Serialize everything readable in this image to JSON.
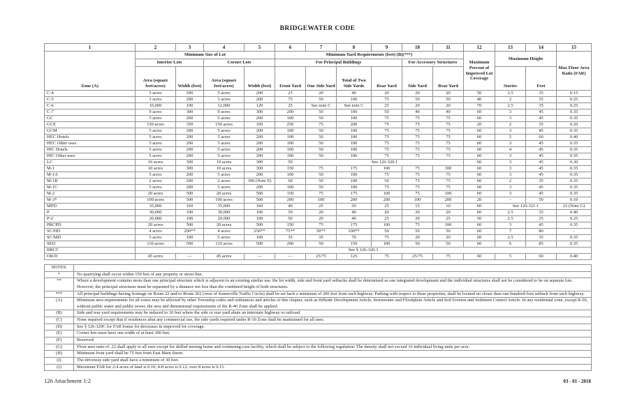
{
  "page": {
    "title": "BRIDGEWATER CODE",
    "footer_left": "126 Attachment 1:2",
    "footer_right": "03 - 01 - 2018"
  },
  "table": {
    "headers": {
      "column_numbers": [
        "1",
        "2",
        "3",
        "4",
        "5",
        "6",
        "7",
        "8",
        "9",
        "10",
        "11",
        "12",
        "13",
        "14",
        "15"
      ],
      "zone": "Zone (A)",
      "min_size_of_lot": "Minimum Size of Lot",
      "min_yard_req": "Minimum Yard Requirements (feet) (B)(***)",
      "max_pct_coverage": "Maximum Percent of Improved Lot Coverage",
      "max_height": "Maximum Height",
      "max_far": "Max Floor Area Ratio (FAR)",
      "interior_lots": "Interior Lots",
      "corner_lots": "Corner Lots",
      "for_principal": "For Principal Buildings",
      "for_accessory": "For Accessory Structures",
      "area_interior": "Area (square feet/acres)",
      "width_interior": "Width (feet)",
      "area_corner": "Area (square feet/acres)",
      "width_corner": "Width (feet)",
      "front_yard": "Front Yard",
      "one_side_yard": "One Side Yard",
      "total_two_side_yards": "Total of Two Side Yards",
      "rear_yard_principal": "Rear Yard",
      "side_yard_accessory": "Side Yard",
      "rear_yard_accessory": "Rear Yard",
      "stories": "Stories",
      "feet": "Feet"
    },
    "rows": [
      {
        "zone": "C-4",
        "cells": [
          "5 acres",
          "200",
          "5 acres",
          "200",
          "25",
          "20",
          "40",
          "20",
          "20",
          "20",
          "50",
          "2.5",
          "35",
          "0.15"
        ]
      },
      {
        "zone": "C-5",
        "cells": [
          "3 acres",
          "200",
          "3 acres",
          "200",
          "75",
          "50",
          "100",
          "75",
          "50",
          "50",
          "40",
          "2",
          "35",
          "0.25"
        ]
      },
      {
        "zone": "C-6",
        "cells": [
          "10,000",
          "100",
          "12,000",
          "120",
          "25",
          "See note C",
          "See note C",
          "25",
          "20",
          "20",
          "70",
          "2.5",
          "35",
          "0.25"
        ]
      },
      {
        "zone": "C-7",
        "cells": [
          "9 acres",
          "300",
          "9 acres",
          "300",
          "200",
          "50",
          "100",
          "50",
          "40",
          "40",
          "60",
          "3",
          "45",
          "0.35"
        ]
      },
      {
        "zone": "GC",
        "cells": [
          "5 acres",
          "200",
          "5 acres",
          "200",
          "100",
          "50",
          "100",
          "75",
          "75",
          "75",
          "60",
          "3",
          "45",
          "0.35"
        ]
      },
      {
        "zone": "GCE",
        "cells": [
          "150 acres",
          "350",
          "150 acres",
          "350",
          "250",
          "75",
          "200",
          "75",
          "75",
          "75",
          "20",
          "2",
          "35",
          "0.20"
        ]
      },
      {
        "zone": "GCM",
        "cells": [
          "5 acres",
          "200",
          "5 acres",
          "200",
          "100",
          "50",
          "100",
          "75",
          "75",
          "75",
          "60",
          "3",
          "45",
          "0.35"
        ]
      },
      {
        "zone": "HEC Hotels",
        "cells": [
          "5 acres",
          "200",
          "5 acres",
          "200",
          "100",
          "50",
          "100",
          "75",
          "75",
          "75",
          "60",
          "5",
          "60",
          "0.40"
        ]
      },
      {
        "zone": "HEC Other uses",
        "cells": [
          "5 acres",
          "200",
          "5 acres",
          "200",
          "100",
          "50",
          "100",
          "75",
          "75",
          "75",
          "60",
          "3",
          "45",
          "0.35"
        ]
      },
      {
        "zone": "HIC Hotels",
        "cells": [
          "5 acres",
          "200",
          "5 acres",
          "200",
          "100",
          "50",
          "100",
          "75",
          "75",
          "75",
          "60",
          "4",
          "45",
          "0.35"
        ]
      },
      {
        "zone": "HIC Other uses",
        "cells": [
          "5 acres",
          "200",
          "5 acres",
          "200",
          "100",
          "50",
          "100",
          "75",
          "75",
          "75",
          "60",
          "3",
          "45",
          "0.35"
        ]
      },
      {
        "zone": "LC",
        "cells": [
          "10 acres",
          "300",
          "10 acres",
          "300",
          "50",
          {
            "t": "See 126-320.1",
            "s": 5
          },
          "60",
          "3",
          "45",
          "0.30"
        ]
      },
      {
        "zone": "M-1",
        "cells": [
          "10 acres",
          "300",
          "10 acres",
          "300",
          "150",
          "75",
          "175",
          "100",
          "75",
          "100",
          "60",
          "3",
          "45",
          "0.35"
        ]
      },
      {
        "zone": "M-1A",
        "cells": [
          "5 acres",
          "200",
          "5 acres",
          "200",
          "100",
          "50",
          "100",
          "75",
          "75",
          "75",
          "60",
          "3",
          "45",
          "0.35"
        ]
      },
      {
        "zone": "M-1B",
        "cells": [
          "2 acres",
          "200",
          "2 acres",
          "300 (Note E)",
          "60",
          "50",
          "100",
          "50",
          "75",
          "75",
          "60",
          "2",
          "35",
          "0.35"
        ]
      },
      {
        "zone": "M-1C",
        "cells": [
          "5 acres",
          "200",
          "5 acres",
          "200",
          "100",
          "50",
          "100",
          "75",
          "75",
          "75",
          "60",
          "3",
          "45",
          "0.35"
        ]
      },
      {
        "zone": "M-2",
        "cells": [
          "20 acres",
          "500",
          "20 acres",
          "500",
          "150",
          "75",
          "175",
          "100",
          "75",
          "100",
          "60",
          "3",
          "45",
          "0.35"
        ]
      },
      {
        "zone": "M-3*",
        "cells": [
          "100 acres",
          "500",
          "100 acres",
          "500",
          "200",
          "100",
          "200",
          "200",
          "100",
          "200",
          "20",
          "-",
          "50",
          "0.10"
        ]
      },
      {
        "zone": "MPD",
        "cells": [
          "35,000",
          "160",
          "35,000",
          "160",
          "40",
          "25",
          "50",
          "25",
          "15",
          "10",
          "60",
          {
            "t": "See 126-321.1",
            "s": 2
          },
          "22 (Note G)"
        ]
      },
      {
        "zone": "P",
        "cells": [
          "30,000",
          "100",
          "30,000",
          "100",
          "50",
          "20",
          "40",
          "20",
          "20",
          "20",
          "60",
          "2.5",
          "35",
          "0.40"
        ]
      },
      {
        "zone": "P-2",
        "cells": [
          "20,000",
          "100",
          "20,000",
          "100",
          "50",
          "20",
          "40",
          "25",
          "20",
          "25",
          "50",
          "2.5",
          "35",
          "0.25"
        ]
      },
      {
        "zone": "PRCPD",
        "cells": [
          "20 acres",
          "500",
          "20 acres",
          "500",
          "150",
          "75",
          "175",
          "100",
          "75",
          "100",
          "60",
          "3",
          "45",
          "0.35"
        ]
      },
      {
        "zone": "SC/HD",
        "cells": [
          "4 acres",
          "200**",
          "4 acres",
          "250**",
          "75**",
          "50**",
          "100**",
          "50",
          "50",
          "50",
          "60",
          "7",
          "80",
          "-"
        ]
      },
      {
        "zone": "SC/MD",
        "cells": [
          "5 acres",
          "100",
          "5 acres",
          "100",
          "35",
          "35",
          "70",
          "75",
          "20",
          "20",
          "60",
          "2.5",
          "35",
          "0.35"
        ]
      },
      {
        "zone": "SED",
        "cells": [
          "110 acres",
          "500",
          "110 acres",
          "500",
          "200",
          "50",
          "150",
          "100",
          "50",
          "50",
          "60",
          "6",
          "85",
          "0.35"
        ]
      },
      {
        "zone": "BRCC",
        "cells": [
          {
            "t": "See § 126-320.3",
            "s": 14
          }
        ]
      },
      {
        "zone": "OR/D",
        "cells": [
          "45 acres",
          "—",
          "45 acres",
          "—",
          "—",
          "25/75",
          "125",
          "75",
          "25/75",
          "75",
          "60",
          "5",
          "60",
          "0.40"
        ]
      }
    ]
  },
  "notes": {
    "header": "NOTES:",
    "items": [
      {
        "label": "*",
        "text": "No quarrying shall occur within 150 feet of any property or street line."
      },
      {
        "label": "**",
        "text": "Where a development contains more than one principal structure which is adjacent to an existing similar use, the lot width, side and front yard setbacks shall be determined as one integrated development and the individual structures shall not be considered to be on separate lots. However, the principal structures must be separated by a distance not less than the combined height of both structures."
      },
      {
        "label": "***",
        "text": "All principal buildings having frontage on Route 22 and/or Route 202 (west of Somerville Traffic Circle) shall be set back a minimum of 200 feet from such highway. Parking with respect to these properties, shall be located no closer than one-hundred-foot setback from such highway."
      },
      {
        "label": "(A)",
        "text": "Minimum area requirements for all zones may be affected by other Township codes and ordinances and articles of this chapter, such as Hillside Development Article, Stormwater and Floodplain Article and Soil Erosion and Sediment Control Article. In any residential zone, except R-50, without public water and public sewer, the area and dimensional requirements of the R-40 Zone shall be applied."
      },
      {
        "label": "(B)",
        "text": "Side and rear yard requirements may be reduced to 10 feet where the side or rear yard abuts an interstate highway or railroad."
      },
      {
        "label": "(C)",
        "text": "None required except that if residences abut any commercial use, the side yards required under R-10 Zone shall be maintained for all uses."
      },
      {
        "label": "(D)",
        "text": "See § 126-329C for FAR bonus for decreases in improved lot coverage."
      },
      {
        "label": "(E)",
        "text": "Corner lots must have one width of at least 300 feet."
      },
      {
        "label": "(F)",
        "text": "Reserved."
      },
      {
        "label": "(G)",
        "text": "Floor area ratio of .22 shall apply to all uses except for skilled nursing home and continuing-care facility, which shall be subject to the following regulation: The density shall not exceed 16 individual living units per acre."
      },
      {
        "label": "(H)",
        "text": "Minimum front yard shall be 75 feet from East Main Street."
      },
      {
        "label": "(I)",
        "text": "The driveway side yard shall have a minimum of 30 feet."
      },
      {
        "label": "(J)",
        "text": "Maximum FAR for 2-4 acres of land is 0.10; 4-8 acres is 0.12; over 8 acres is 0.15."
      }
    ]
  }
}
